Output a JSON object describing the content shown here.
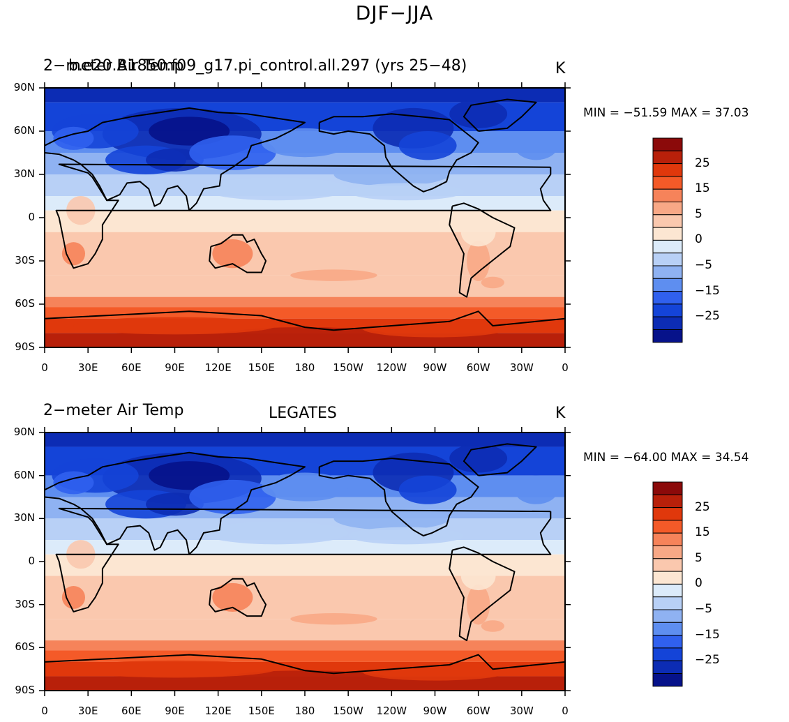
{
  "figure": {
    "title": "DJF−JJA"
  },
  "panels": [
    {
      "left_title": "2−meter Air Temp",
      "center_title": "b.e20.B1850.f09_g17.pi_control.all.297 (yrs 25−48)",
      "units": "K",
      "stats": "MIN = −51.59 MAX =  37.03"
    },
    {
      "left_title": "2−meter Air Temp",
      "center_title": "LEGATES",
      "units": "K",
      "stats": "MIN = −64.00 MAX =  34.54"
    }
  ],
  "axes": {
    "lat_ticks": [
      "90N",
      "60N",
      "30N",
      "0",
      "30S",
      "60S",
      "90S"
    ],
    "lon_ticks": [
      "0",
      "30E",
      "60E",
      "90E",
      "120E",
      "150E",
      "180",
      "150W",
      "120W",
      "90W",
      "60W",
      "30W",
      "0"
    ]
  },
  "colorbar": {
    "labels": [
      "25",
      "15",
      "5",
      "0",
      "−5",
      "−15",
      "−25"
    ],
    "colors": [
      "#8b0a0a",
      "#b8200a",
      "#e0380c",
      "#f45a28",
      "#f6835a",
      "#f8a886",
      "#fac8ae",
      "#fce6d2",
      "#dcebfa",
      "#b8d0f6",
      "#8fb2f2",
      "#5e8ef0",
      "#3060ee",
      "#1444d8",
      "#0c2cb4",
      "#06128a"
    ]
  }
}
